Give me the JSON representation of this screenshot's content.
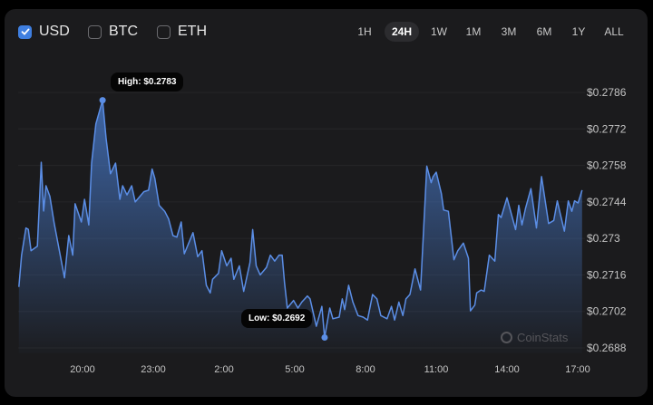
{
  "currencies": [
    {
      "label": "USD",
      "checked": true
    },
    {
      "label": "BTC",
      "checked": false
    },
    {
      "label": "ETH",
      "checked": false
    }
  ],
  "ranges": [
    "1H",
    "24H",
    "1W",
    "1M",
    "3M",
    "6M",
    "1Y",
    "ALL"
  ],
  "active_range": "24H",
  "watermark": "CoinStats",
  "colors": {
    "line": "#5b8ee6",
    "fill": "#4a7fd4",
    "checkbox": "#3f7fe0"
  },
  "chart_data": {
    "type": "area",
    "title": "",
    "xlabel": "",
    "ylabel": "",
    "ylim": [
      0.2688,
      0.2786
    ],
    "y_ticks": [
      "$0.2786",
      "$0.2772",
      "$0.2758",
      "$0.2744",
      "$0.273",
      "$0.2716",
      "$0.2702",
      "$0.2688"
    ],
    "y_tick_values": [
      0.2786,
      0.2772,
      0.2758,
      0.2744,
      0.273,
      0.2716,
      0.2702,
      0.2688
    ],
    "x_ticks": [
      "20:00",
      "23:00",
      "2:00",
      "5:00",
      "8:00",
      "11:00",
      "14:00",
      "17:00"
    ],
    "grid": "horizontal",
    "high": {
      "label": "High: $0.2783",
      "time": "20:51",
      "value": 0.2783
    },
    "low": {
      "label": "Low: $0.2692",
      "time": "06:16",
      "value": 0.2692
    },
    "points": [
      [
        "17:18",
        0.27114
      ],
      [
        "17:25",
        0.27236
      ],
      [
        "17:36",
        0.2734
      ],
      [
        "17:42",
        0.27335
      ],
      [
        "17:49",
        0.27253
      ],
      [
        "18:05",
        0.2727
      ],
      [
        "18:15",
        0.27592
      ],
      [
        "18:21",
        0.27405
      ],
      [
        "18:27",
        0.27502
      ],
      [
        "18:37",
        0.27461
      ],
      [
        "18:48",
        0.27357
      ],
      [
        "19:14",
        0.27149
      ],
      [
        "19:25",
        0.27311
      ],
      [
        "19:35",
        0.27236
      ],
      [
        "19:41",
        0.27433
      ],
      [
        "19:57",
        0.27363
      ],
      [
        "20:05",
        0.2745
      ],
      [
        "20:16",
        0.27352
      ],
      [
        "20:23",
        0.27589
      ],
      [
        "20:34",
        0.27739
      ],
      [
        "20:51",
        0.2783
      ],
      [
        "21:00",
        0.27683
      ],
      [
        "21:11",
        0.27548
      ],
      [
        "21:24",
        0.27589
      ],
      [
        "21:35",
        0.2745
      ],
      [
        "21:42",
        0.27502
      ],
      [
        "21:53",
        0.27467
      ],
      [
        "22:05",
        0.27502
      ],
      [
        "22:14",
        0.2744
      ],
      [
        "22:36",
        0.27479
      ],
      [
        "22:48",
        0.27485
      ],
      [
        "22:57",
        0.27566
      ],
      [
        "23:04",
        0.27531
      ],
      [
        "23:15",
        0.27427
      ],
      [
        "23:29",
        0.27404
      ],
      [
        "23:39",
        0.27375
      ],
      [
        "23:50",
        0.27311
      ],
      [
        "00:00",
        0.27305
      ],
      [
        "00:11",
        0.27363
      ],
      [
        "00:19",
        0.27241
      ],
      [
        "00:41",
        0.27322
      ],
      [
        "00:53",
        0.2723
      ],
      [
        "01:04",
        0.27253
      ],
      [
        "01:15",
        0.2712
      ],
      [
        "01:25",
        0.27091
      ],
      [
        "01:31",
        0.27143
      ],
      [
        "01:46",
        0.27166
      ],
      [
        "01:54",
        0.27253
      ],
      [
        "02:07",
        0.27195
      ],
      [
        "02:18",
        0.27224
      ],
      [
        "02:25",
        0.27143
      ],
      [
        "02:39",
        0.27195
      ],
      [
        "02:50",
        0.27097
      ],
      [
        "03:06",
        0.27207
      ],
      [
        "03:13",
        0.27334
      ],
      [
        "03:22",
        0.27195
      ],
      [
        "03:32",
        0.2716
      ],
      [
        "03:48",
        0.27189
      ],
      [
        "03:58",
        0.27236
      ],
      [
        "04:09",
        0.27213
      ],
      [
        "04:20",
        0.27236
      ],
      [
        "04:28",
        0.27236
      ],
      [
        "04:34",
        0.27131
      ],
      [
        "04:41",
        0.27033
      ],
      [
        "04:57",
        0.27062
      ],
      [
        "05:08",
        0.27033
      ],
      [
        "05:18",
        0.27056
      ],
      [
        "05:32",
        0.27079
      ],
      [
        "05:39",
        0.27068
      ],
      [
        "05:55",
        0.26963
      ],
      [
        "06:09",
        0.27039
      ],
      [
        "06:16",
        0.2692
      ],
      [
        "06:29",
        0.27033
      ],
      [
        "06:37",
        0.26992
      ],
      [
        "06:53",
        0.26998
      ],
      [
        "07:01",
        0.27068
      ],
      [
        "07:07",
        0.27027
      ],
      [
        "07:17",
        0.2712
      ],
      [
        "07:28",
        0.27056
      ],
      [
        "07:41",
        0.27004
      ],
      [
        "07:54",
        0.26998
      ],
      [
        "08:05",
        0.26987
      ],
      [
        "08:18",
        0.27085
      ],
      [
        "08:29",
        0.27068
      ],
      [
        "08:39",
        0.27004
      ],
      [
        "08:55",
        0.26992
      ],
      [
        "09:06",
        0.27039
      ],
      [
        "09:14",
        0.26987
      ],
      [
        "09:25",
        0.27056
      ],
      [
        "09:35",
        0.27004
      ],
      [
        "09:43",
        0.27068
      ],
      [
        "09:53",
        0.27085
      ],
      [
        "10:06",
        0.27183
      ],
      [
        "10:20",
        0.27102
      ],
      [
        "10:36",
        0.27577
      ],
      [
        "10:47",
        0.27514
      ],
      [
        "10:52",
        0.27537
      ],
      [
        "11:00",
        0.27554
      ],
      [
        "11:13",
        0.27473
      ],
      [
        "11:19",
        0.27409
      ],
      [
        "11:31",
        0.27404
      ],
      [
        "11:45",
        0.27218
      ],
      [
        "11:55",
        0.27253
      ],
      [
        "12:09",
        0.27282
      ],
      [
        "12:22",
        0.27224
      ],
      [
        "12:27",
        0.27022
      ],
      [
        "12:38",
        0.27044
      ],
      [
        "12:43",
        0.27091
      ],
      [
        "12:54",
        0.27102
      ],
      [
        "13:02",
        0.27097
      ],
      [
        "13:15",
        0.27236
      ],
      [
        "13:29",
        0.27213
      ],
      [
        "13:38",
        0.27392
      ],
      [
        "13:45",
        0.2738
      ],
      [
        "14:00",
        0.27456
      ],
      [
        "14:22",
        0.27334
      ],
      [
        "14:30",
        0.27427
      ],
      [
        "14:38",
        0.27352
      ],
      [
        "14:47",
        0.27415
      ],
      [
        "15:01",
        0.27491
      ],
      [
        "15:15",
        0.2734
      ],
      [
        "15:28",
        0.27537
      ],
      [
        "15:46",
        0.27357
      ],
      [
        "15:59",
        0.27369
      ],
      [
        "16:08",
        0.27444
      ],
      [
        "16:15",
        0.27398
      ],
      [
        "16:26",
        0.27328
      ],
      [
        "16:36",
        0.27444
      ],
      [
        "16:45",
        0.27404
      ],
      [
        "16:52",
        0.27444
      ],
      [
        "17:01",
        0.27436
      ],
      [
        "17:11",
        0.27485
      ]
    ]
  }
}
